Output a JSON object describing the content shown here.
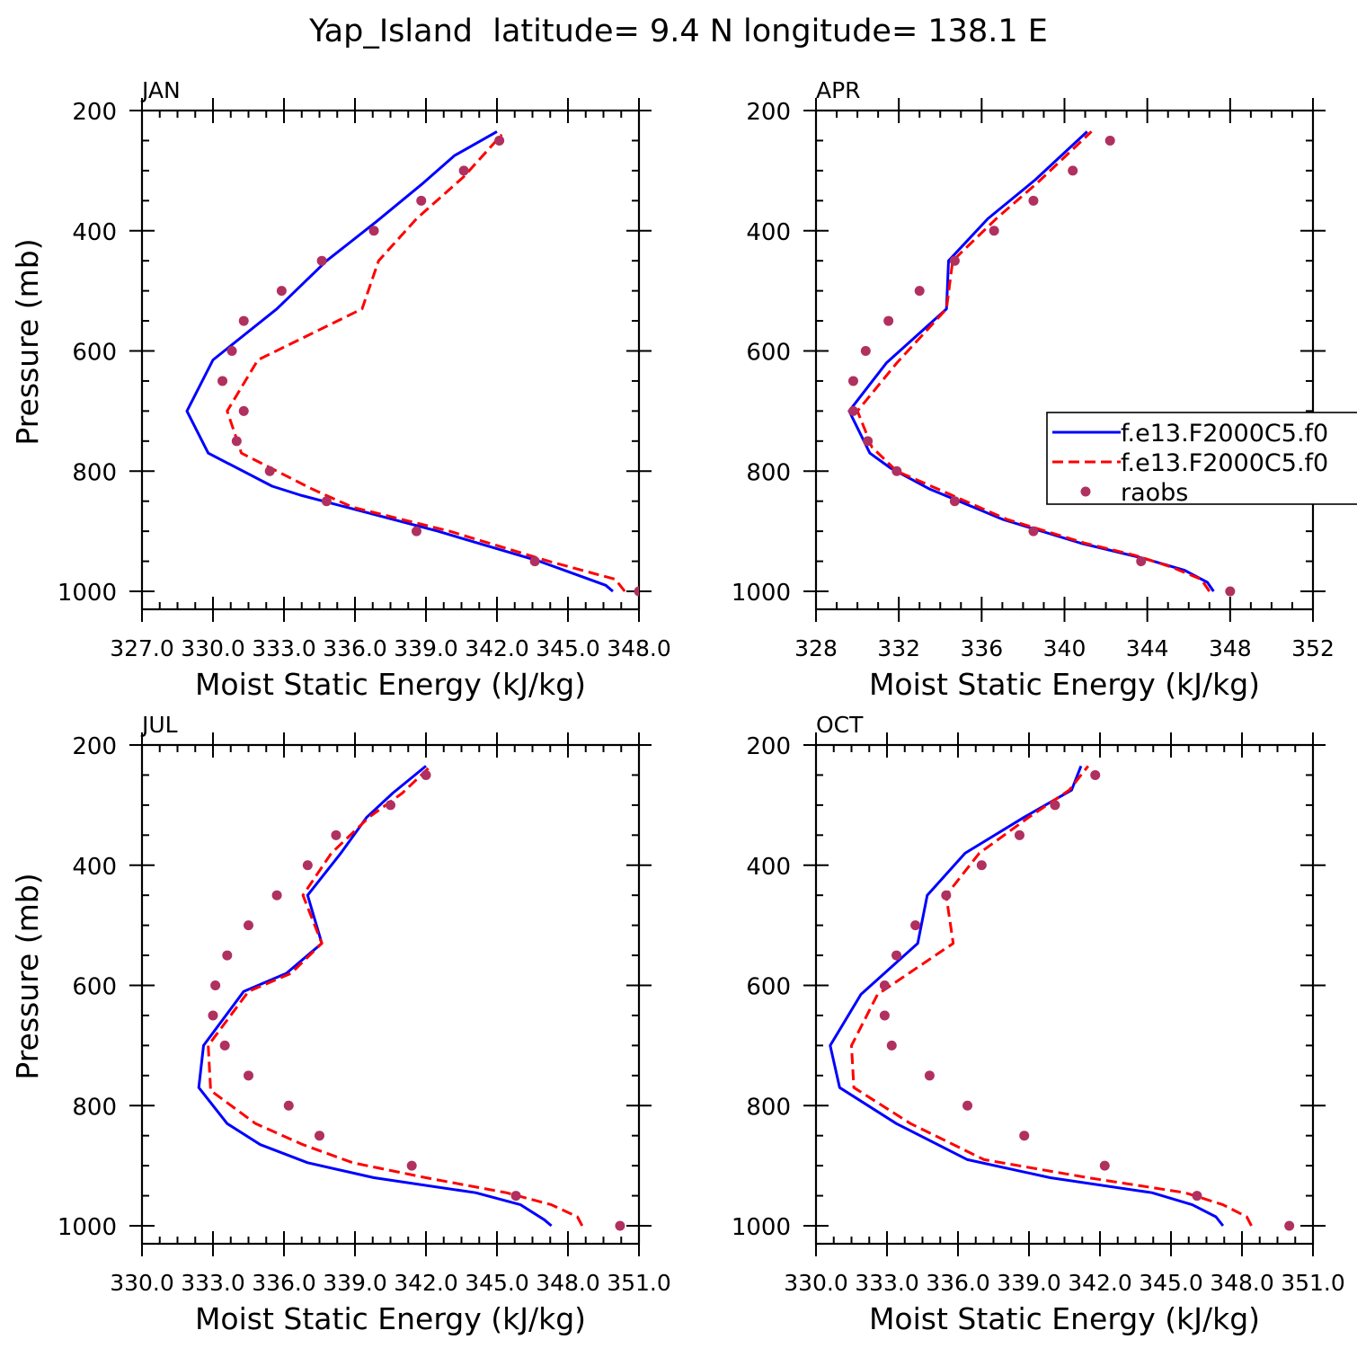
{
  "figure": {
    "title": "Yap_Island  latitude= 9.4 N longitude= 138.1 E",
    "legend": {
      "placement": "right-middle of APR panel",
      "entries": [
        {
          "label": "f.e13.F2000C5.f0",
          "style": "solid",
          "color": "#0000ff"
        },
        {
          "label": "f.e13.F2000C5.f0",
          "style": "dashed",
          "color": "#ff0000"
        },
        {
          "label": "raobs",
          "style": "dots",
          "color": "#b03060"
        }
      ]
    },
    "colors": {
      "model_solid": "#0000ff",
      "model_dashed": "#ff0000",
      "raobs": "#b03060"
    }
  },
  "chart_data": [
    {
      "type": "line",
      "panel_label": "JAN",
      "xlabel": "Moist Static Energy (kJ/kg)",
      "ylabel": "Pressure (mb)",
      "xlim": [
        327,
        348
      ],
      "ylim": [
        1000,
        200
      ],
      "xticks": [
        327,
        330,
        333,
        336,
        339,
        342,
        345,
        348
      ],
      "xtick_labels": [
        "327.0",
        "330.0",
        "333.0",
        "336.0",
        "339.0",
        "342.0",
        "345.0",
        "348.0"
      ],
      "yticks": [
        200,
        400,
        600,
        800,
        1000
      ],
      "ytick_labels": [
        "200",
        "400",
        "600",
        "800",
        "1000"
      ],
      "series": [
        {
          "style": "solid",
          "color": "#0000ff",
          "x": [
            346.9,
            346.6,
            343.8,
            339.5,
            333.7,
            332.5,
            329.8,
            328.9,
            330.0,
            332.7,
            334.8,
            336.9,
            338.9,
            340.2,
            342.0
          ],
          "y": [
            1000,
            990,
            950,
            900,
            840,
            825,
            770,
            700,
            615,
            530,
            450,
            385,
            320,
            275,
            235
          ]
        },
        {
          "style": "dashed",
          "color": "#ff0000",
          "x": [
            347.4,
            347.0,
            344.2,
            340.0,
            335.9,
            334.2,
            331.2,
            330.6,
            331.9,
            336.3,
            337.0,
            338.6,
            340.6,
            342.2
          ],
          "y": [
            1000,
            980,
            950,
            900,
            860,
            830,
            770,
            700,
            615,
            530,
            450,
            380,
            310,
            240
          ]
        },
        {
          "style": "dots",
          "color": "#b03060",
          "x": [
            348.0,
            343.6,
            338.6,
            334.8,
            332.4,
            331.0,
            331.3,
            330.4,
            330.8,
            331.3,
            332.9,
            334.6,
            336.8,
            338.8,
            340.6,
            342.1
          ],
          "y": [
            1000,
            950,
            900,
            850,
            800,
            750,
            700,
            650,
            600,
            550,
            500,
            450,
            400,
            350,
            300,
            250
          ]
        }
      ]
    },
    {
      "type": "line",
      "panel_label": "APR",
      "xlabel": "Moist Static Energy (kJ/kg)",
      "ylabel": "",
      "xlim": [
        328,
        352
      ],
      "ylim": [
        1000,
        200
      ],
      "xticks": [
        328,
        332,
        336,
        340,
        344,
        348,
        352
      ],
      "xtick_labels": [
        "328",
        "332",
        "336",
        "340",
        "344",
        "348",
        "352"
      ],
      "yticks": [
        200,
        400,
        600,
        800,
        1000
      ],
      "ytick_labels": [
        "200",
        "400",
        "600",
        "800",
        "1000"
      ],
      "series": [
        {
          "style": "solid",
          "color": "#0000ff",
          "x": [
            347.2,
            346.9,
            345.8,
            343.8,
            340.8,
            337.0,
            333.5,
            331.6,
            330.6,
            329.6,
            331.4,
            334.3,
            334.4,
            336.3,
            338.6,
            341.1
          ],
          "y": [
            1000,
            985,
            965,
            945,
            920,
            880,
            830,
            795,
            770,
            700,
            620,
            530,
            450,
            380,
            315,
            235
          ]
        },
        {
          "style": "dashed",
          "color": "#ff0000",
          "x": [
            347.0,
            346.6,
            345.2,
            343.4,
            341.0,
            337.2,
            333.9,
            331.9,
            330.7,
            330.0,
            331.9,
            334.3,
            334.6,
            336.7,
            338.7,
            341.3
          ],
          "y": [
            1000,
            980,
            960,
            940,
            920,
            880,
            830,
            800,
            760,
            700,
            620,
            530,
            450,
            380,
            320,
            235
          ]
        },
        {
          "style": "dots",
          "color": "#b03060",
          "x": [
            348.0,
            343.7,
            338.5,
            334.7,
            331.9,
            330.5,
            329.8,
            329.8,
            330.4,
            331.5,
            333.0,
            334.7,
            336.6,
            338.5,
            340.4,
            342.2
          ],
          "y": [
            1000,
            950,
            900,
            850,
            800,
            750,
            700,
            650,
            600,
            550,
            500,
            450,
            400,
            350,
            300,
            250
          ]
        }
      ]
    },
    {
      "type": "line",
      "panel_label": "JUL",
      "xlabel": "Moist Static Energy (kJ/kg)",
      "ylabel": "Pressure (mb)",
      "xlim": [
        330,
        351
      ],
      "ylim": [
        1000,
        200
      ],
      "xticks": [
        330,
        333,
        336,
        339,
        342,
        345,
        348,
        351
      ],
      "xtick_labels": [
        "330.0",
        "333.0",
        "336.0",
        "339.0",
        "342.0",
        "345.0",
        "348.0",
        "351.0"
      ],
      "yticks": [
        200,
        400,
        600,
        800,
        1000
      ],
      "ytick_labels": [
        "200",
        "400",
        "600",
        "800",
        "1000"
      ],
      "series": [
        {
          "style": "solid",
          "color": "#0000ff",
          "x": [
            347.3,
            347.0,
            346.0,
            344.1,
            339.8,
            337.0,
            335.0,
            333.6,
            332.4,
            332.6,
            334.3,
            336.1,
            337.6,
            337.0,
            338.4,
            339.5,
            340.6,
            342.0
          ],
          "y": [
            1000,
            990,
            965,
            945,
            920,
            895,
            865,
            830,
            770,
            700,
            610,
            580,
            530,
            450,
            380,
            320,
            280,
            235
          ]
        },
        {
          "style": "dashed",
          "color": "#ff0000",
          "x": [
            348.6,
            348.4,
            347.3,
            345.4,
            342.0,
            338.9,
            336.8,
            334.8,
            332.9,
            332.8,
            334.5,
            336.3,
            337.6,
            336.8,
            338.0,
            339.6,
            341.0,
            342.2
          ],
          "y": [
            1000,
            985,
            965,
            945,
            920,
            895,
            865,
            830,
            775,
            700,
            610,
            580,
            530,
            450,
            380,
            320,
            280,
            235
          ]
        },
        {
          "style": "dots",
          "color": "#b03060",
          "x": [
            350.2,
            345.8,
            341.4,
            337.5,
            336.2,
            334.5,
            333.5,
            333.0,
            333.1,
            333.6,
            334.5,
            335.7,
            337.0,
            338.2,
            340.5,
            342.0
          ],
          "y": [
            1000,
            950,
            900,
            850,
            800,
            750,
            700,
            650,
            600,
            550,
            500,
            450,
            400,
            350,
            300,
            250
          ]
        }
      ]
    },
    {
      "type": "line",
      "panel_label": "OCT",
      "xlabel": "Moist Static Energy (kJ/kg)",
      "ylabel": "",
      "xlim": [
        330,
        351
      ],
      "ylim": [
        1000,
        200
      ],
      "xticks": [
        330,
        333,
        336,
        339,
        342,
        345,
        348,
        351
      ],
      "xtick_labels": [
        "330.0",
        "333.0",
        "336.0",
        "339.0",
        "342.0",
        "345.0",
        "348.0",
        "351.0"
      ],
      "yticks": [
        200,
        400,
        600,
        800,
        1000
      ],
      "ytick_labels": [
        "200",
        "400",
        "600",
        "800",
        "1000"
      ],
      "series": [
        {
          "style": "solid",
          "color": "#0000ff",
          "x": [
            347.2,
            346.9,
            345.9,
            344.2,
            339.9,
            336.4,
            333.4,
            331.0,
            330.6,
            331.9,
            334.3,
            334.7,
            336.3,
            338.8,
            340.8,
            341.2
          ],
          "y": [
            1000,
            985,
            965,
            945,
            920,
            890,
            830,
            770,
            700,
            615,
            530,
            450,
            380,
            320,
            275,
            235
          ]
        },
        {
          "style": "dashed",
          "color": "#ff0000",
          "x": [
            348.4,
            348.2,
            347.2,
            345.6,
            341.5,
            337.1,
            334.0,
            331.6,
            331.5,
            332.6,
            335.8,
            335.5,
            336.9,
            339.0,
            340.7,
            341.5
          ],
          "y": [
            1000,
            985,
            965,
            945,
            920,
            890,
            830,
            770,
            700,
            615,
            530,
            450,
            380,
            320,
            275,
            235
          ]
        },
        {
          "style": "dots",
          "color": "#b03060",
          "x": [
            350.0,
            346.1,
            342.2,
            338.8,
            336.4,
            334.8,
            333.2,
            332.9,
            332.9,
            333.4,
            334.2,
            335.5,
            337.0,
            338.6,
            340.1,
            341.8
          ],
          "y": [
            1000,
            950,
            900,
            850,
            800,
            750,
            700,
            650,
            600,
            550,
            500,
            450,
            400,
            350,
            300,
            250
          ]
        }
      ]
    }
  ]
}
